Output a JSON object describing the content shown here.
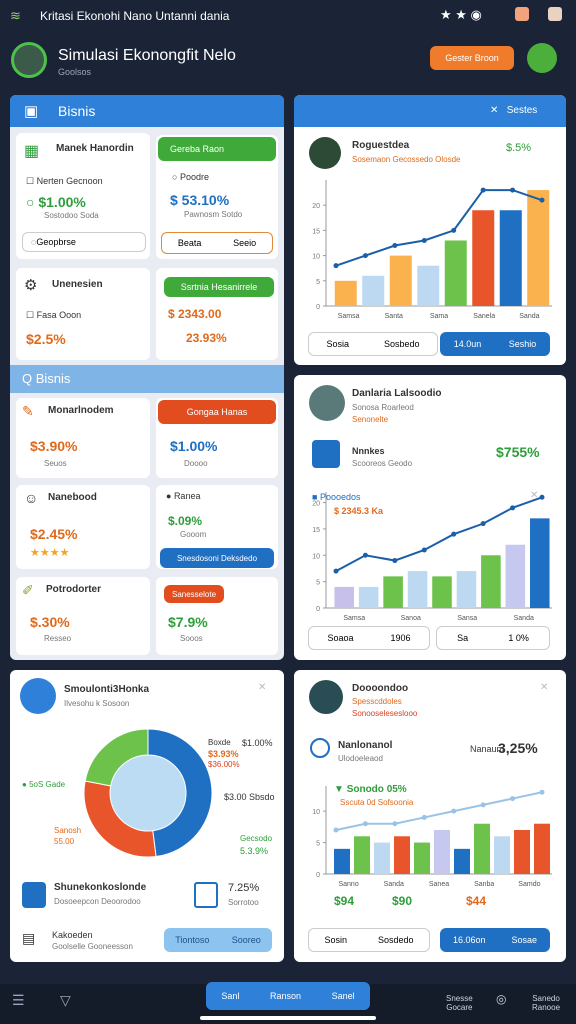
{
  "status_bar": {
    "title": "Kritasi Ekonohi Nano Untanni dania"
  },
  "header": {
    "title": "Simulasi Ekonongfit Nelo",
    "subtitle": "Goolsos",
    "button": "Gester Broon"
  },
  "left_panel": {
    "title": "Bisnis",
    "card_a": {
      "title": "Manek Hanordin",
      "check": "Nerten Gecnoon",
      "value": "$1.00%",
      "note": "Sostodoo Soda",
      "button": "Geopbrse"
    },
    "card_b": {
      "header": "Gereba Raon",
      "label": "Poodre",
      "value": "$ 53.10%",
      "note": "Pawnosm Sotdo",
      "button_left": "Beata",
      "button_right": "Seeio"
    },
    "card_c": {
      "title": "Unenesien",
      "check": "Fasa Ooon",
      "value": "$2.5%"
    },
    "card_d": {
      "header": "Ssrtnia Hesanirrele",
      "value1": "$ 2343.00",
      "value2": "23.93%"
    },
    "section_title": "Bisnis",
    "card_e": {
      "title": "Monarlnodem",
      "value": "$3.90%",
      "note": "Seuos"
    },
    "card_f": {
      "header": "Gongaa Hanas",
      "value": "$1.00%",
      "note": "Doooo"
    },
    "card_g": {
      "title": "Nanebood",
      "value": "$2.45%",
      "stars": "★★★★"
    },
    "card_h": {
      "title": "Ranea",
      "value": "$.09%",
      "note": "Gooom",
      "button": "Snesdosoni Deksdedo"
    },
    "card_i": {
      "title": "Potrodorter",
      "value": "$.30%",
      "note": "Resseo"
    },
    "card_j": {
      "button": "Sanesselote",
      "value": "$7.9%",
      "note": "Sooos"
    }
  },
  "right_card_1": {
    "header": "Sestes",
    "title": "Roguestdea",
    "subtitle": "Sosemaon Gecossedo Olosde",
    "value": "$.5%",
    "button_left_a": "Sosia",
    "button_left_b": "Sosbedo",
    "button_right_a": "14.0un",
    "button_right_b": "Seshio"
  },
  "right_card_2": {
    "title": "Danlaria Lalsoodio",
    "subtitle": "Sonosa Roarleod",
    "tag": "Senonelte",
    "item_title": "Nnnkes",
    "item_sub": "Scooreos Geodo",
    "item_value": "$755%",
    "chart_title": "Poooedos",
    "chart_value": "$ 2345.3 Ka",
    "button_left_a": "Soaoa",
    "button_left_b": "1906",
    "button_right_a": "Sa",
    "button_right_b": "1 0%"
  },
  "pie_card": {
    "title": "Smoulonti3Honka",
    "subtitle": "Ilvesohu k Sosoon",
    "label_top": "Boxde",
    "label_top_value": "$1.00%",
    "label_top_value2": "$3.93%",
    "label_top_value3": "$36.00%",
    "label_left": "5oS Gade",
    "label_left2": "Sanosh",
    "label_left2_value": "55.00",
    "label_right": "$3.00 Sbsdo",
    "label_right2": "Gecsodo",
    "label_right2_value": "5.3.9%",
    "row_title": "Shunekonkoslonde",
    "row_sub": "Dosoeepcon Deoorodoo",
    "row_value": "7.25%",
    "row_note": "Sorrotoo",
    "foot_title": "Kakoeden",
    "foot_sub": "Goolselle Gooneesson",
    "button_a": "Tiontoso",
    "button_b": "Sooreo"
  },
  "right_card_3": {
    "title": "Doooondoo",
    "line1": "Spesscddoles",
    "line2": "Sonooseleseslooo",
    "item_title": "Nanlonanol",
    "item_sub": "Ulodoeleaod",
    "item_label": "Nanaum",
    "item_value": "3,25%",
    "chart_title": "Sonodo",
    "chart_value": "05%",
    "chart_sub": "Sscuta 0d Sofsoonia",
    "value_a": "$94",
    "value_b": "$90",
    "value_c": "$44",
    "button_left_a": "Sosin",
    "button_left_b": "Sosdedo",
    "button_right_a": "16.06on",
    "button_right_b": "Sosae"
  },
  "bottom_nav": {
    "tab_a": "Sanl",
    "tab_b": "Ranson",
    "tab_c": "Sanel",
    "right_a": "Snesse",
    "right_a2": "Gocare",
    "right_b": "Sanedo",
    "right_b2": "Ranooe"
  },
  "charts": [
    {
      "type": "bar",
      "bar_values": [
        5,
        6,
        10,
        8,
        13,
        19,
        19,
        23
      ],
      "bar_colors": [
        "#f9b24e",
        "#bcd9f1",
        "#f9b24e",
        "#bcd9f1",
        "#6cc24a",
        "#e8552a",
        "#1f6fc2",
        "#f9b24e"
      ],
      "line_values": [
        8,
        10,
        12,
        13,
        15,
        23,
        23,
        21
      ],
      "line_color": "#1b5fa8",
      "ylim": [
        0,
        25
      ],
      "yticks": [
        0,
        5,
        10,
        15,
        20
      ],
      "x_labels": [
        "Samsa",
        "Santa",
        "Sama",
        "Sanela",
        "Sanda"
      ]
    },
    {
      "type": "bar",
      "bar_values": [
        4,
        4,
        6,
        7,
        6,
        7,
        10,
        12,
        17
      ],
      "bar_colors": [
        "#c7c0ea",
        "#bcd9f1",
        "#6cc24a",
        "#bcd9f1",
        "#6cc24a",
        "#bcd9f1",
        "#6cc24a",
        "#c7c8f0",
        "#1f6fc2"
      ],
      "line_values": [
        7,
        10,
        9,
        11,
        14,
        16,
        19,
        21
      ],
      "line_color": "#1b5fa8",
      "ylim": [
        0,
        22
      ],
      "yticks": [
        0,
        5,
        10,
        15,
        20
      ],
      "x_labels": [
        "Samsa",
        "Sanoa",
        "Sansa",
        "Sanda"
      ]
    },
    {
      "type": "bar",
      "bar_values": [
        4,
        6,
        5,
        6,
        5,
        7,
        4,
        8,
        6,
        7,
        8
      ],
      "bar_colors": [
        "#1f6fc2",
        "#6cc24a",
        "#bcd9f1",
        "#e8552a",
        "#6cc24a",
        "#c7c8f0",
        "#1f6fc2",
        "#6cc24a",
        "#bcd9f1",
        "#e8552a",
        "#e8552a"
      ],
      "line_values": [
        7,
        8,
        8,
        9,
        10,
        11,
        12,
        13
      ],
      "line_color": "#9bc3e6",
      "ylim": [
        0,
        14
      ],
      "yticks": [
        0,
        5,
        10
      ],
      "x_labels": [
        "Sanno",
        "Sanda",
        "Sanea",
        "Sanba",
        "Samdo"
      ]
    }
  ],
  "pie": {
    "type": "pie",
    "values": [
      48,
      30,
      22
    ],
    "colors": [
      "#1f6fc2",
      "#e8552a",
      "#6cc24a"
    ]
  }
}
